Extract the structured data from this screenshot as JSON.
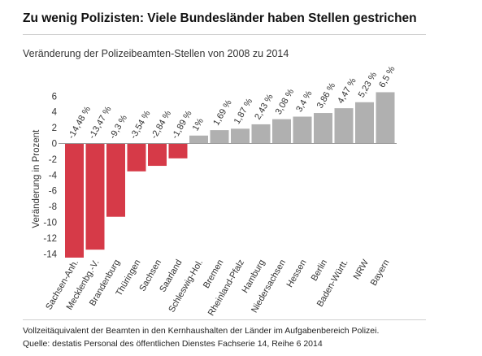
{
  "header": {
    "title": "Zu wenig Polizisten: Viele Bundesländer haben Stellen gestrichen",
    "subtitle": "Veränderung der Polizeibeamten-Stellen von 2008 zu 2014"
  },
  "footer": {
    "note": "Vollzeitäquivalent der Beamten in den Kernhaushalten der Länder im Aufgabenbereich Polizei.",
    "source": "Quelle: destatis Personal des öffentlichen Dienstes Fachserie 14, Reihe 6 2014"
  },
  "colors": {
    "negative": "#d63a48",
    "positive": "#b0b0b0",
    "axis": "#999999",
    "text": "#333333"
  },
  "chart_data": {
    "type": "bar",
    "title": "Veränderung der Polizeibeamten-Stellen von 2008 zu 2014",
    "ylabel": "Veränderung in Prozent",
    "xlabel": "",
    "ylim": [
      -14,
      7
    ],
    "yticks": [
      6,
      4,
      2,
      0,
      -2,
      -4,
      -6,
      -8,
      -10,
      -12,
      -14
    ],
    "grid": false,
    "categories": [
      "Sachsen-Anh.",
      "Mecklenbg.-V.",
      "Brandenburg",
      "Thüringen",
      "Sachsen",
      "Saarland",
      "Schleswig-Hol.",
      "Bremen",
      "Rheinland-Pfalz",
      "Hamburg",
      "Niedersachsen",
      "Hessen",
      "Berlin",
      "Baden-Württ.",
      "NRW",
      "Bayern"
    ],
    "values": [
      -14.48,
      -13.47,
      -9.3,
      -3.54,
      -2.84,
      -1.89,
      1,
      1.69,
      1.87,
      2.43,
      3.08,
      3.4,
      3.86,
      4.47,
      5.23,
      6.5
    ],
    "data_labels": [
      "-14,48 %",
      "-13,47 %",
      "-9,3 %",
      "-3,54 %",
      "-2,84 %",
      "-1,89 %",
      "1%",
      "1,69 %",
      "1,87 %",
      "2,43 %",
      "3,08 %",
      "3,4 %",
      "3,86 %",
      "4,47 %",
      "5,23 %",
      "6,5 %"
    ]
  }
}
